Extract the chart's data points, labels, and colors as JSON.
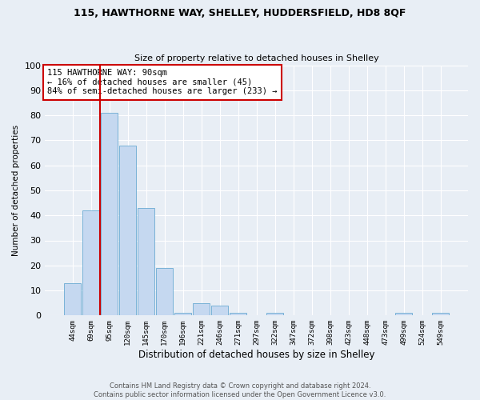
{
  "title1": "115, HAWTHORNE WAY, SHELLEY, HUDDERSFIELD, HD8 8QF",
  "title2": "Size of property relative to detached houses in Shelley",
  "xlabel": "Distribution of detached houses by size in Shelley",
  "ylabel": "Number of detached properties",
  "footer1": "Contains HM Land Registry data © Crown copyright and database right 2024.",
  "footer2": "Contains public sector information licensed under the Open Government Licence v3.0.",
  "categories": [
    "44sqm",
    "69sqm",
    "95sqm",
    "120sqm",
    "145sqm",
    "170sqm",
    "196sqm",
    "221sqm",
    "246sqm",
    "271sqm",
    "297sqm",
    "322sqm",
    "347sqm",
    "372sqm",
    "398sqm",
    "423sqm",
    "448sqm",
    "473sqm",
    "499sqm",
    "524sqm",
    "549sqm"
  ],
  "values": [
    13,
    42,
    81,
    68,
    43,
    19,
    1,
    5,
    4,
    1,
    0,
    1,
    0,
    0,
    0,
    0,
    0,
    0,
    1,
    0,
    1
  ],
  "bar_color": "#c5d8f0",
  "bar_edge_color": "#6aabd2",
  "highlight_index": 2,
  "highlight_color": "#cc0000",
  "ylim": [
    0,
    100
  ],
  "yticks": [
    0,
    10,
    20,
    30,
    40,
    50,
    60,
    70,
    80,
    90,
    100
  ],
  "annotation_text": "115 HAWTHORNE WAY: 90sqm\n← 16% of detached houses are smaller (45)\n84% of semi-detached houses are larger (233) →",
  "annotation_box_color": "#ffffff",
  "annotation_border_color": "#cc0000",
  "bg_color": "#e8eef5",
  "grid_color": "#ffffff"
}
